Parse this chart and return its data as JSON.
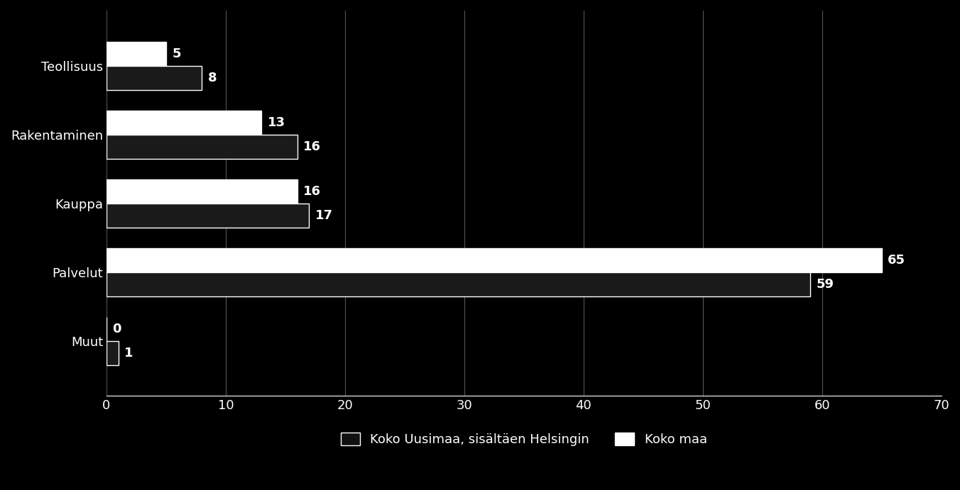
{
  "categories": [
    "Teollisuus",
    "Rakentaminen",
    "Kauppa",
    "Palvelut",
    "Muut"
  ],
  "uusimaa_values": [
    5,
    13,
    16,
    65,
    0
  ],
  "koko_maa_values": [
    8,
    16,
    17,
    59,
    1
  ],
  "uusimaa_color": "#ffffff",
  "koko_maa_color": "#1a1a1a",
  "background_color": "#000000",
  "text_color": "#ffffff",
  "bar_height": 0.35,
  "xlim": [
    0,
    70
  ],
  "xticks": [
    0,
    10,
    20,
    30,
    40,
    50,
    60,
    70
  ],
  "legend_label_uusimaa": "Koko Uusimaa, sisältäen Helsingin",
  "legend_label_koko_maa": "Koko maa",
  "label_fontsize": 13,
  "tick_fontsize": 13,
  "legend_fontsize": 13
}
